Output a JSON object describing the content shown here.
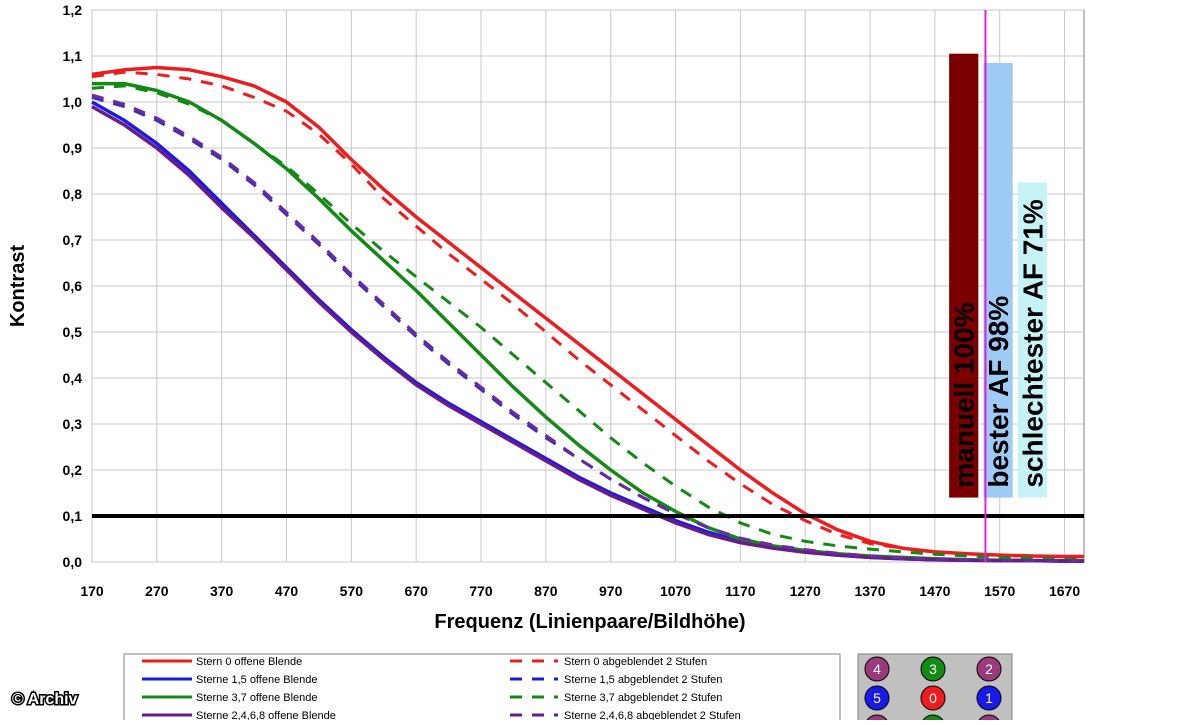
{
  "chart_data": {
    "type": "line",
    "xlabel": "Frequenz (Linienpaare/Bildhöhe)",
    "ylabel": "Kontrast",
    "xlim": [
      170,
      1700
    ],
    "ylim": [
      0,
      1.2
    ],
    "x_ticks": [
      "170",
      "270",
      "370",
      "470",
      "570",
      "670",
      "770",
      "870",
      "970",
      "1070",
      "1170",
      "1270",
      "1370",
      "1470",
      "1570",
      "1670"
    ],
    "y_ticks": [
      "0,0",
      "0,1",
      "0,2",
      "0,3",
      "0,4",
      "0,5",
      "0,6",
      "0,7",
      "0,8",
      "0,9",
      "1,0",
      "1,1",
      "1,2"
    ],
    "grid": true,
    "threshold_line": {
      "y": 0.1,
      "color": "#000000"
    },
    "marker_line": {
      "x": 1548,
      "color": "#e020e0"
    },
    "x": [
      170,
      220,
      270,
      320,
      370,
      420,
      470,
      520,
      570,
      620,
      670,
      720,
      770,
      820,
      870,
      920,
      970,
      1020,
      1070,
      1120,
      1170,
      1220,
      1270,
      1320,
      1370,
      1420,
      1470,
      1520,
      1570,
      1620,
      1670,
      1700
    ],
    "series": [
      {
        "name": "Stern 0 offene Blende",
        "color": "#ee1c1c",
        "dash": false,
        "values": [
          1.06,
          1.07,
          1.075,
          1.07,
          1.055,
          1.035,
          1.0,
          0.945,
          0.875,
          0.81,
          0.75,
          0.695,
          0.64,
          0.585,
          0.53,
          0.475,
          0.42,
          0.365,
          0.31,
          0.255,
          0.2,
          0.15,
          0.105,
          0.07,
          0.045,
          0.03,
          0.022,
          0.018,
          0.015,
          0.013,
          0.012,
          0.012
        ]
      },
      {
        "name": "Stern 0 abgeblendet 2 Stufen",
        "color": "#ee1c1c",
        "dash": true,
        "values": [
          1.055,
          1.065,
          1.06,
          1.05,
          1.035,
          1.01,
          0.98,
          0.93,
          0.865,
          0.79,
          0.73,
          0.67,
          0.615,
          0.56,
          0.5,
          0.44,
          0.385,
          0.33,
          0.275,
          0.22,
          0.17,
          0.125,
          0.09,
          0.06,
          0.04,
          0.03,
          0.022,
          0.018,
          0.015,
          0.013,
          0.012,
          0.012
        ]
      },
      {
        "name": "Sterne 1,5 offene Blende",
        "color": "#1a1ae6",
        "dash": false,
        "values": [
          1.0,
          0.96,
          0.91,
          0.85,
          0.78,
          0.71,
          0.64,
          0.57,
          0.505,
          0.445,
          0.39,
          0.345,
          0.305,
          0.265,
          0.225,
          0.185,
          0.15,
          0.12,
          0.09,
          0.065,
          0.045,
          0.032,
          0.022,
          0.015,
          0.01,
          0.007,
          0.005,
          0.004,
          0.003,
          0.003,
          0.002,
          0.002
        ]
      },
      {
        "name": "Sterne 1,5 abgeblendet 2 Stufen",
        "color": "#3a2ec0",
        "dash": true,
        "values": [
          1.01,
          0.99,
          0.96,
          0.92,
          0.875,
          0.82,
          0.755,
          0.69,
          0.62,
          0.555,
          0.49,
          0.43,
          0.375,
          0.32,
          0.27,
          0.225,
          0.18,
          0.14,
          0.105,
          0.075,
          0.05,
          0.035,
          0.025,
          0.018,
          0.012,
          0.009,
          0.007,
          0.005,
          0.004,
          0.003,
          0.003,
          0.003
        ]
      },
      {
        "name": "Sterne 3,7 offene Blende",
        "color": "#138a13",
        "dash": false,
        "values": [
          1.04,
          1.04,
          1.025,
          1.0,
          0.96,
          0.91,
          0.855,
          0.79,
          0.72,
          0.655,
          0.59,
          0.52,
          0.45,
          0.38,
          0.315,
          0.255,
          0.2,
          0.15,
          0.11,
          0.075,
          0.05,
          0.035,
          0.025,
          0.018,
          0.013,
          0.01,
          0.007,
          0.005,
          0.004,
          0.003,
          0.003,
          0.003
        ]
      },
      {
        "name": "Sterne 3,7 abgeblendet 2 Stufen",
        "color": "#138a13",
        "dash": true,
        "values": [
          1.03,
          1.035,
          1.02,
          0.995,
          0.96,
          0.91,
          0.86,
          0.8,
          0.735,
          0.675,
          0.62,
          0.565,
          0.51,
          0.45,
          0.39,
          0.33,
          0.27,
          0.215,
          0.165,
          0.12,
          0.085,
          0.06,
          0.045,
          0.035,
          0.028,
          0.022,
          0.017,
          0.013,
          0.01,
          0.008,
          0.006,
          0.005
        ]
      },
      {
        "name": "Sterne 2,4,6,8 offene Blende",
        "color": "#6a1a8a",
        "dash": false,
        "values": [
          0.99,
          0.95,
          0.9,
          0.84,
          0.77,
          0.705,
          0.635,
          0.565,
          0.5,
          0.44,
          0.385,
          0.34,
          0.3,
          0.26,
          0.22,
          0.18,
          0.145,
          0.115,
          0.085,
          0.06,
          0.042,
          0.03,
          0.021,
          0.015,
          0.01,
          0.007,
          0.005,
          0.004,
          0.003,
          0.003,
          0.002,
          0.002
        ]
      },
      {
        "name": "Sterne 2,4,6,8 abgeblendet 2 Stufen",
        "color": "#6a2aa0",
        "dash": true,
        "values": [
          1.015,
          0.995,
          0.965,
          0.925,
          0.88,
          0.825,
          0.76,
          0.695,
          0.625,
          0.56,
          0.495,
          0.435,
          0.38,
          0.325,
          0.275,
          0.225,
          0.18,
          0.14,
          0.105,
          0.075,
          0.052,
          0.037,
          0.027,
          0.019,
          0.013,
          0.009,
          0.007,
          0.005,
          0.004,
          0.003,
          0.003,
          0.003
        ]
      }
    ],
    "bars": [
      {
        "label": "manuell 100%",
        "value_top": 1.105,
        "value_bottom": 0.14,
        "x_start": 1492,
        "x_end": 1537,
        "color": "#7a0000"
      },
      {
        "label": "bester AF 98%",
        "value_top": 1.085,
        "value_bottom": 0.14,
        "x_start": 1545,
        "x_end": 1590,
        "color": "#9ecbf5"
      },
      {
        "label": "schlechtester AF 71%",
        "value_top": 0.825,
        "value_bottom": 0.14,
        "x_start": 1598,
        "x_end": 1643,
        "color": "#c6f4f6"
      }
    ],
    "legend_rows": [
      {
        "left": "Stern 0 offene Blende",
        "right": "Stern 0 abgeblendet 2 Stufen",
        "color": "#ee1c1c"
      },
      {
        "left": "Sterne 1,5 offene Blende",
        "right": "Sterne 1,5 abgeblendet 2 Stufen",
        "color": "#1a1ae6"
      },
      {
        "left": "Sterne 3,7 offene Blende",
        "right": "Sterne 3,7 abgeblendet 2 Stufen",
        "color": "#138a13"
      },
      {
        "left": "Sterne 2,4,6,8 offene Blende",
        "right": "Sterne 2,4,6,8 abgeblendet 2 Stufen",
        "color": "#6a1a8a"
      }
    ],
    "star_dots": [
      {
        "label": "4",
        "color": "#9a3a7a"
      },
      {
        "label": "3",
        "color": "#138a13"
      },
      {
        "label": "2",
        "color": "#9a3a7a"
      },
      {
        "label": "5",
        "color": "#1a1ae6"
      },
      {
        "label": "0",
        "color": "#ee1c1c"
      },
      {
        "label": "1",
        "color": "#1a1ae6"
      },
      {
        "label": "",
        "color": "#9a3a7a"
      },
      {
        "label": "",
        "color": "#138a13"
      },
      {
        "label": "",
        "color": "#9a3a7a"
      }
    ]
  },
  "copyright": "© Archiv"
}
